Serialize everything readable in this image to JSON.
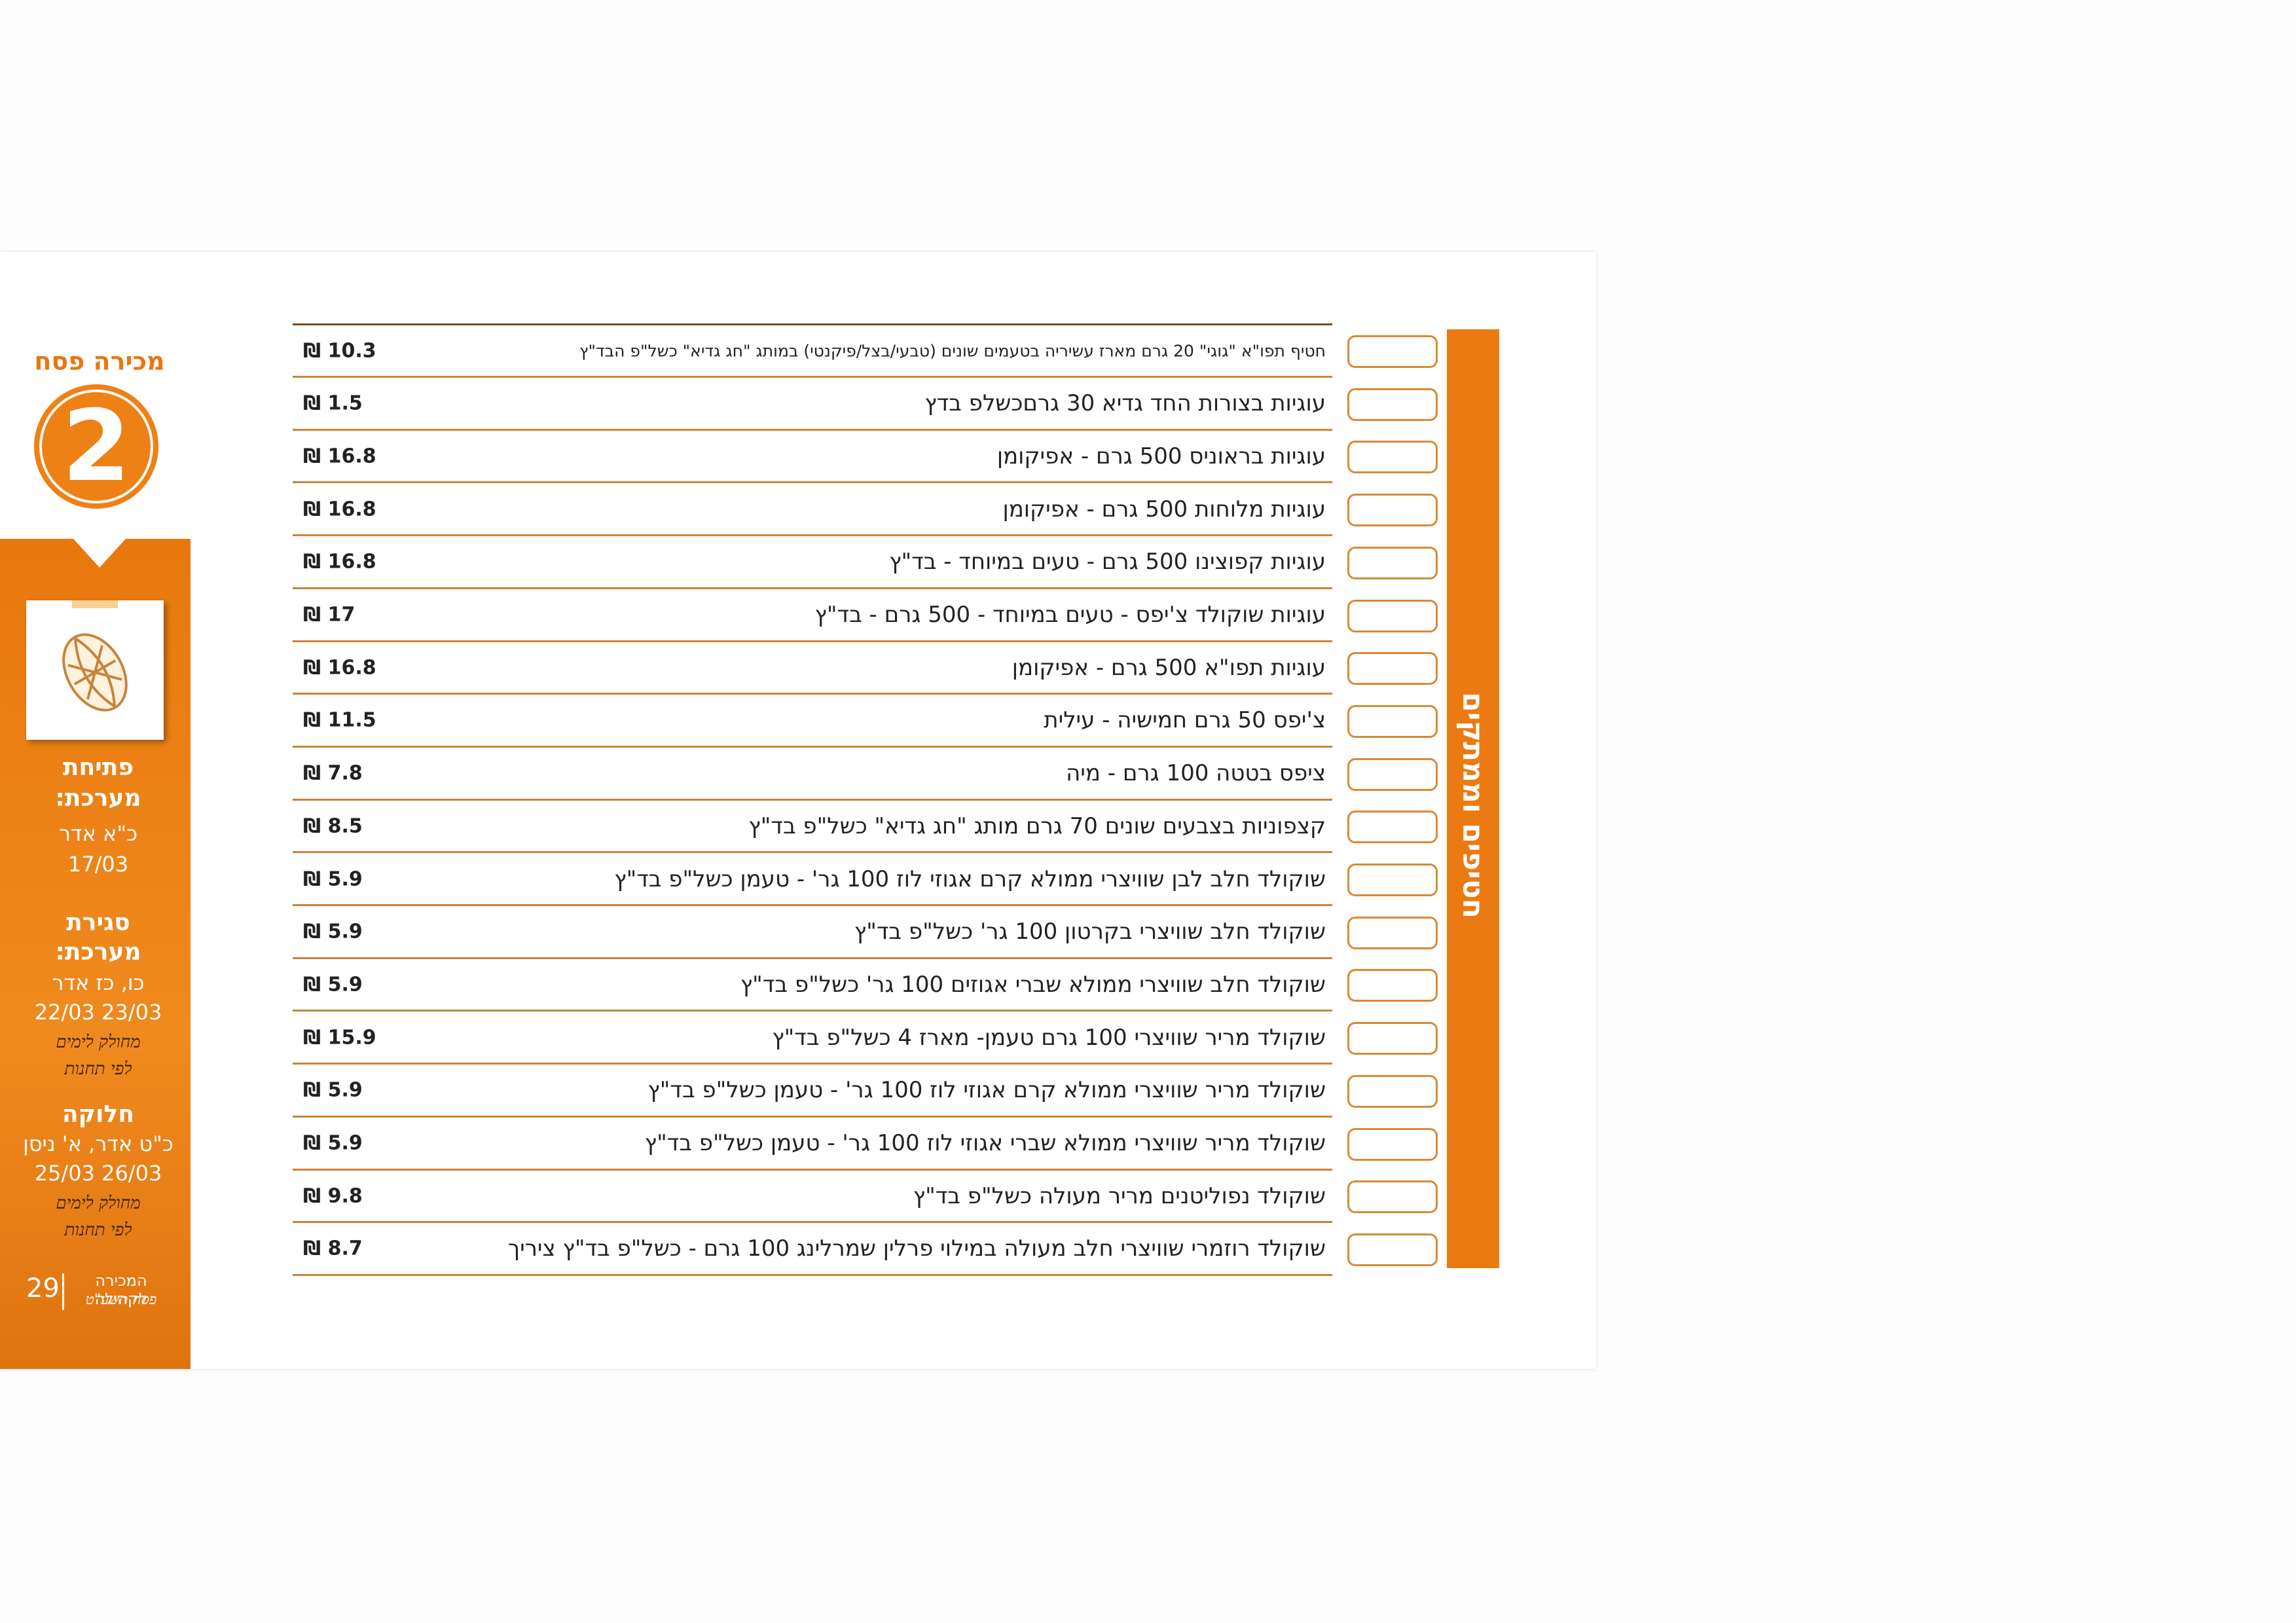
{
  "header": {
    "title": "מכירה פסח",
    "number": "2"
  },
  "sidebar": {
    "opening": {
      "label": "פתיחת",
      "label2": "מערכת:",
      "date_he": "כ\"א אדר",
      "date": "17/03"
    },
    "closing": {
      "label": "סגירת",
      "label2": "מערכת:",
      "date_he": "כו, כז אדר",
      "date": "23/03 22/03",
      "note1": "מחולק לימים",
      "note2": "לפי תחנות"
    },
    "distribution": {
      "label": "חלוקה",
      "date_he": "כ\"ט אדר, א' ניסן",
      "date": "26/03 25/03",
      "note1": "מחולק לימים",
      "note2": "לפי תחנות"
    },
    "footer": {
      "page": "29",
      "line1": "המכירה לקהילה",
      "line2": "פסח תשע\"ט"
    }
  },
  "category": "חטיפים וממתקים",
  "table": {
    "rows": [
      {
        "name": "חטיף תפו\"א \"גוגי\" 20 גרם מארז עשיריה בטעמים שונים (טבעי/בצל/פיקנטי) במותג \"חג גדיא\" כשל\"פ הבד\"ץ",
        "price": "₪ 10.3"
      },
      {
        "name": "עוגיות בצורות החד גדיא 30 גרםכשלפ בדץ",
        "price": "₪ 1.5"
      },
      {
        "name": "עוגיות בראוניס 500 גרם - אפיקומן",
        "price": "₪ 16.8"
      },
      {
        "name": "עוגיות מלוחות 500 גרם - אפיקומן",
        "price": "₪ 16.8"
      },
      {
        "name": "עוגיות קפוצינו 500 גרם - טעים במיוחד - בד\"ץ",
        "price": "₪ 16.8"
      },
      {
        "name": "עוגיות שוקולד צ'יפס - טעים במיוחד - 500 גרם - בד\"ץ",
        "price": "₪ 17"
      },
      {
        "name": "עוגיות תפו\"א 500 גרם - אפיקומן",
        "price": "₪ 16.8"
      },
      {
        "name": "צ'יפס 50 גרם חמישיה - עילית",
        "price": "₪ 11.5"
      },
      {
        "name": "ציפס בטטה 100 גרם - מיה",
        "price": "₪ 7.8"
      },
      {
        "name": "קצפוניות בצבעים שונים 70 גרם מותג \"חג גדיא\" כשל\"פ בד\"ץ",
        "price": "₪ 8.5"
      },
      {
        "name": "שוקולד חלב לבן שוויצרי ממולא קרם אגוזי לוז 100 גר' - טעמן כשל\"פ בד\"ץ",
        "price": "₪ 5.9"
      },
      {
        "name": "שוקולד חלב שוויצרי בקרטון 100 גר' כשל\"פ בד\"ץ",
        "price": "₪ 5.9"
      },
      {
        "name": "שוקולד חלב שוויצרי ממולא שברי אגוזים 100 גר' כשל\"פ בד\"ץ",
        "price": "₪ 5.9"
      },
      {
        "name": "שוקולד מריר שוויצרי 100 גרם טעמן- מארז 4 כשל\"פ בד\"ץ",
        "price": "₪ 15.9"
      },
      {
        "name": "שוקולד מריר שוויצרי ממולא קרם אגוזי לוז 100 גר' - טעמן כשל\"פ בד\"ץ",
        "price": "₪ 5.9"
      },
      {
        "name": "שוקולד מריר שוויצרי ממולא שברי אגוזי לוז 100 גר' - טעמן כשל\"פ בד\"ץ",
        "price": "₪ 5.9"
      },
      {
        "name": "שוקולד נפוליטנים מריר מעולה כשל\"פ בד\"ץ",
        "price": "₪ 9.8"
      },
      {
        "name": "שוקולד רוזמרי שוויצרי חלב מעולה במילוי פרלין שמרלינג 100 גרם - כשל\"פ בד\"ץ ציריך",
        "price": "₪ 8.7"
      }
    ]
  }
}
